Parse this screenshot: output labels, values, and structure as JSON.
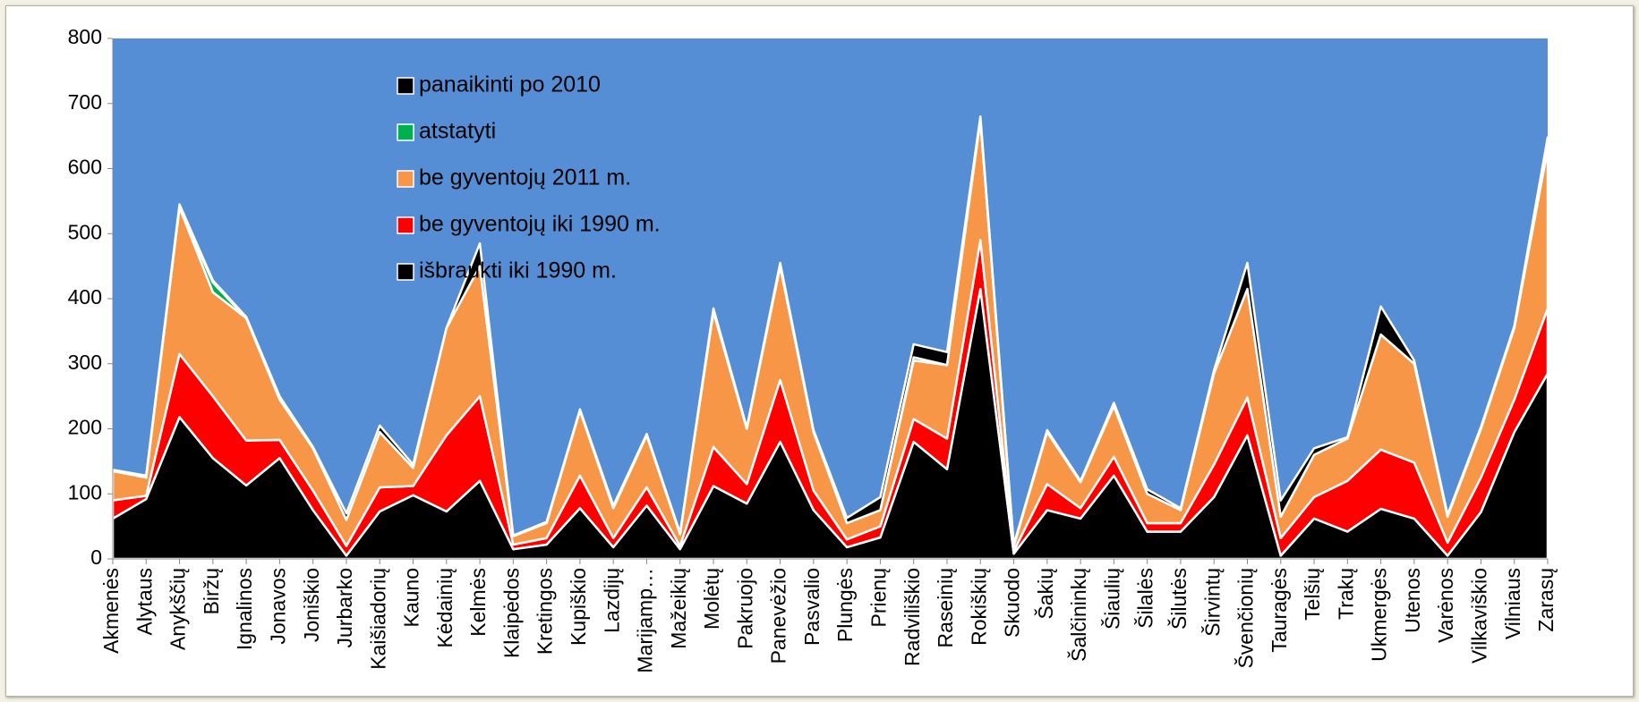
{
  "chart_data": {
    "type": "stacked_area",
    "categories": [
      "Akmenės",
      "Alytaus",
      "Anykščių",
      "Biržų",
      "Ignalinos",
      "Jonavos",
      "Joniškio",
      "Jurbarko",
      "Kaišiadorių",
      "Kauno",
      "Kėdainių",
      "Kelmės",
      "Klaipėdos",
      "Kretingos",
      "Kupiškio",
      "Lazdijų",
      "Marijamp…",
      "Mažeikių",
      "Molėtų",
      "Pakruojo",
      "Panevėžio",
      "Pasvalio",
      "Plungės",
      "Prienų",
      "Radviliškio",
      "Raseinių",
      "Rokiškių",
      "Skuodo",
      "Šakių",
      "Šalčininkų",
      "Šiaulių",
      "Šilalės",
      "Šilutės",
      "Širvintų",
      "Švenčionių",
      "Tauragės",
      "Telšių",
      "Trakų",
      "Ukmergės",
      "Utenos",
      "Varėnos",
      "Vilkaviškio",
      "Vilniaus",
      "Zarasų"
    ],
    "series": [
      {
        "name": "išbraukti iki 1990 m.",
        "color": "#000000",
        "values": [
          62,
          92,
          218,
          155,
          113,
          155,
          75,
          5,
          73,
          98,
          73,
          120,
          15,
          22,
          78,
          18,
          82,
          15,
          112,
          85,
          180,
          75,
          18,
          33,
          180,
          138,
          415,
          8,
          75,
          62,
          128,
          42,
          42,
          95,
          190,
          5,
          62,
          42,
          77,
          62,
          5,
          72,
          195,
          285
        ]
      },
      {
        "name": "be gyventojų iki 1990 m.",
        "color": "#ff0000",
        "values": [
          28,
          5,
          97,
          95,
          69,
          28,
          30,
          15,
          37,
          14,
          117,
          130,
          7,
          10,
          50,
          14,
          28,
          5,
          60,
          30,
          95,
          30,
          12,
          17,
          35,
          47,
          75,
          4,
          40,
          16,
          29,
          13,
          13,
          50,
          58,
          27,
          33,
          78,
          91,
          86,
          20,
          53,
          50,
          100
        ]
      },
      {
        "name": "be gyventojų 2011 m.",
        "color": "#f79646",
        "values": [
          45,
          28,
          225,
          160,
          188,
          62,
          65,
          40,
          85,
          28,
          165,
          200,
          13,
          23,
          100,
          46,
          80,
          18,
          208,
          85,
          175,
          90,
          25,
          25,
          90,
          113,
          185,
          8,
          80,
          40,
          78,
          45,
          20,
          140,
          167,
          33,
          65,
          65,
          177,
          152,
          40,
          75,
          110,
          245
        ]
      },
      {
        "name": "atstatyti",
        "color": "#00b050",
        "values": [
          0,
          0,
          0,
          15,
          0,
          0,
          0,
          0,
          0,
          0,
          0,
          0,
          0,
          0,
          0,
          0,
          0,
          0,
          0,
          0,
          0,
          0,
          0,
          0,
          5,
          0,
          0,
          0,
          0,
          0,
          0,
          0,
          0,
          0,
          0,
          0,
          0,
          0,
          0,
          0,
          0,
          0,
          0,
          0
        ]
      },
      {
        "name": "panaikinti po 2010",
        "color": "#000000",
        "values": [
          2,
          3,
          5,
          3,
          2,
          5,
          2,
          10,
          10,
          5,
          0,
          35,
          1,
          2,
          2,
          4,
          2,
          2,
          5,
          2,
          5,
          3,
          8,
          20,
          20,
          20,
          5,
          2,
          3,
          2,
          5,
          7,
          3,
          5,
          40,
          25,
          10,
          2,
          43,
          5,
          3,
          3,
          3,
          18
        ]
      }
    ],
    "ylim": [
      0,
      800
    ],
    "yticks": [
      0,
      100,
      200,
      300,
      400,
      500,
      600,
      700,
      800
    ],
    "plot_background": "#558ed5",
    "grid": false,
    "legend": "upper left"
  }
}
